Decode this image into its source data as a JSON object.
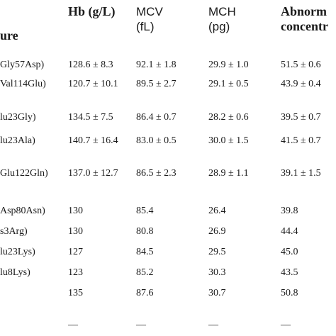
{
  "table": {
    "headers": {
      "structure_tail": "ure",
      "hb": "Hb (g/L)",
      "mcv": [
        "MCV",
        "(fL)"
      ],
      "mch": [
        "MCH",
        "(pg)"
      ],
      "abnormal": [
        "Abnorm",
        "concentr"
      ]
    },
    "rows": [
      {
        "structure": "Gly57Asp)",
        "hb": "128.6 ± 8.3",
        "mcv": "92.1 ± 1.8",
        "mch": "29.9 ± 1.0",
        "abn": "51.5 ± 0.6"
      },
      {
        "structure": "Val114Glu)",
        "hb": "120.7 ± 10.1",
        "mcv": "89.5 ± 2.7",
        "mch": "29.1 ± 0.5",
        "abn": "43.9 ± 0.4"
      },
      {
        "structure": "lu23Gly)",
        "hb": "134.5 ± 7.5",
        "mcv": "86.4 ± 0.7",
        "mch": "28.2 ± 0.6",
        "abn": "39.5 ± 0.7"
      },
      {
        "structure": "lu23Ala)",
        "hb": "140.7 ± 16.4",
        "mcv": "83.0 ± 0.5",
        "mch": "30.0 ± 1.5",
        "abn": "41.5 ± 0.7"
      },
      {
        "structure": "Glu122Gln)",
        "hb": "137.0 ± 12.7",
        "mcv": "86.5 ± 2.3",
        "mch": "28.9 ± 1.1",
        "abn": "39.1 ± 1.5"
      },
      {
        "structure": "Asp80Asn)",
        "hb": "130",
        "mcv": "85.4",
        "mch": "26.4",
        "abn": "39.8"
      },
      {
        "structure": "s3Arg)",
        "hb": "130",
        "mcv": "80.8",
        "mch": "26.9",
        "abn": "44.4"
      },
      {
        "structure": "lu23Lys)",
        "hb": "127",
        "mcv": "84.5",
        "mch": "29.5",
        "abn": "45.0"
      },
      {
        "structure": "lu8Lys)",
        "hb": "123",
        "mcv": "85.2",
        "mch": "30.3",
        "abn": "43.5"
      },
      {
        "structure": "",
        "hb": "135",
        "mcv": "87.6",
        "mch": "30.7",
        "abn": "50.8"
      }
    ],
    "last_row_placeholder": "—"
  }
}
